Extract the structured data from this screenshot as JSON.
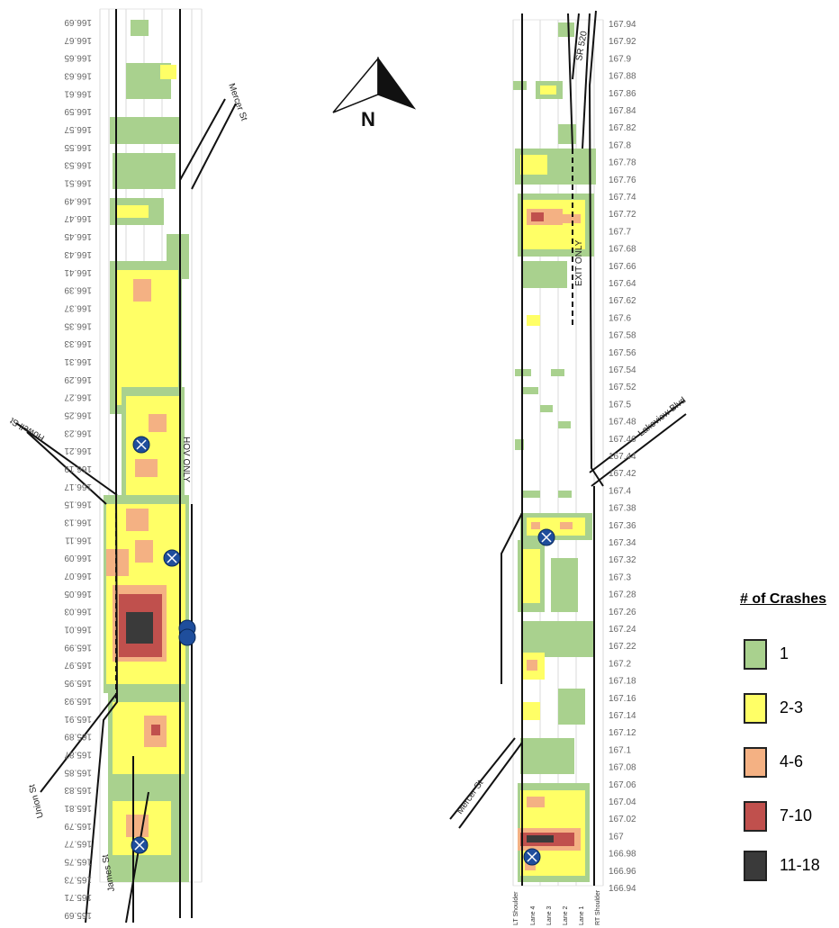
{
  "compass": {
    "label": "N"
  },
  "left_strip": {
    "milepost_labels": [
      "165.69",
      "165.71",
      "165.73",
      "165.75",
      "165.77",
      "165.79",
      "165.81",
      "165.83",
      "165.85",
      "165.87",
      "165.89",
      "165.91",
      "165.93",
      "165.95",
      "165.97",
      "165.99",
      "166.01",
      "166.03",
      "166.05",
      "166.07",
      "166.09",
      "166.11",
      "166.13",
      "166.15",
      "166.17",
      "166.19",
      "166.21",
      "166.23",
      "166.25",
      "166.27",
      "166.29",
      "166.31",
      "166.33",
      "166.35",
      "166.37",
      "166.39",
      "166.41",
      "166.43",
      "166.45",
      "166.47",
      "166.49",
      "166.51",
      "166.53",
      "166.55",
      "166.57",
      "166.59",
      "166.61",
      "166.63",
      "166.65",
      "166.67",
      "166.69"
    ],
    "street_labels": {
      "mercer": "Mercer St",
      "howell": "Howell St",
      "union": "Union St",
      "james": "James St",
      "hov": "HOV ONLY"
    }
  },
  "right_strip": {
    "milepost_labels": [
      "167.94",
      "167.92",
      "167.9",
      "167.88",
      "167.86",
      "167.84",
      "167.82",
      "167.8",
      "167.78",
      "167.76",
      "167.74",
      "167.72",
      "167.7",
      "167.68",
      "167.66",
      "167.64",
      "167.62",
      "167.6",
      "167.58",
      "167.56",
      "167.54",
      "167.52",
      "167.5",
      "167.48",
      "167.46",
      "167.44",
      "167.42",
      "167.4",
      "167.38",
      "167.36",
      "167.34",
      "167.32",
      "167.3",
      "167.28",
      "167.26",
      "167.24",
      "167.22",
      "167.2",
      "167.18",
      "167.16",
      "167.14",
      "167.12",
      "167.1",
      "167.08",
      "167.06",
      "167.04",
      "167.02",
      "167",
      "166.98",
      "166.96",
      "166.94"
    ],
    "street_labels": {
      "sr520": "SR 520",
      "exit_only": "EXIT ONLY",
      "lakeview": "Lakeview Blvd",
      "mercer": "Mercer St"
    },
    "lane_labels": [
      "LT Shoulder",
      "Lane 4",
      "Lane 3",
      "Lane 2",
      "Lane 1",
      "RT Shoulder"
    ]
  },
  "legend": {
    "title": "# of Crashes",
    "items": [
      {
        "label": "1",
        "color": "#a9d18e"
      },
      {
        "label": "2-3",
        "color": "#ffff66"
      },
      {
        "label": "4-6",
        "color": "#f4b183"
      },
      {
        "label": "7-10",
        "color": "#c0504d"
      },
      {
        "label": "11-18",
        "color": "#3a3a3a"
      }
    ]
  }
}
